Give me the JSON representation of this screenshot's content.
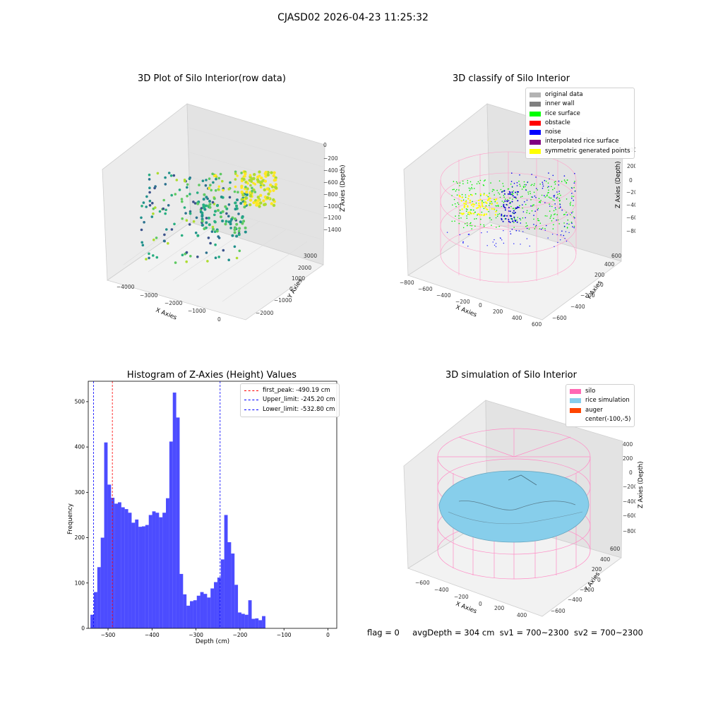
{
  "header": {
    "title": "CJASD02 2026-04-23 11:25:32"
  },
  "panels": {
    "raw": {
      "title": "3D Plot of Silo Interior(row data)",
      "xlabel": "X Axies",
      "ylabel": "Y Axies",
      "zlabel": "Z Axies (Depth)",
      "xticks": [
        "−4000",
        "−3000",
        "−2000",
        "−1000",
        "0"
      ],
      "yticks": [
        "−2000",
        "−1000",
        "0",
        "1000",
        "2000",
        "3000"
      ],
      "zticks": [
        "0",
        "−200",
        "−400",
        "−600",
        "−800",
        "−1000",
        "−1200",
        "−1400"
      ]
    },
    "classify": {
      "title": "3D classify of Silo Interior",
      "xlabel": "X Axies",
      "ylabel": "Y Axies",
      "zlabel": "Z Axies (Depth)",
      "xticks": [
        "−800",
        "−600",
        "−400",
        "−200",
        "0",
        "200",
        "400",
        "600"
      ],
      "yticks": [
        "−600",
        "−400",
        "−200",
        "0",
        "200",
        "400",
        "600"
      ],
      "zticks": [
        "200",
        "0",
        "−200",
        "−400",
        "−600",
        "−800"
      ],
      "legend": [
        {
          "label": "original data",
          "color": "#b3b3b3"
        },
        {
          "label": "inner wall",
          "color": "#808080"
        },
        {
          "label": "rice surface",
          "color": "#00ff00"
        },
        {
          "label": "obstacle",
          "color": "#ff0000"
        },
        {
          "label": "noise",
          "color": "#0000ff"
        },
        {
          "label": "interpolated rice surface",
          "color": "#800080"
        },
        {
          "label": "symmetric generated points",
          "color": "#ffff00"
        }
      ]
    },
    "simulation": {
      "title": "3D simulation of Silo Interior",
      "xlabel": "X Axies",
      "ylabel": "Y Axies",
      "zlabel": "Z Axies (Depth)",
      "xticks": [
        "−600",
        "−400",
        "−200",
        "0",
        "200",
        "400"
      ],
      "yticks": [
        "−600",
        "−400",
        "−200",
        "0",
        "200",
        "400",
        "600"
      ],
      "zticks": [
        "400",
        "200",
        "0",
        "−200",
        "−400",
        "−600",
        "−800"
      ],
      "legend": [
        {
          "label": "silo",
          "color": "#ff69b4"
        },
        {
          "label": "rice simulation",
          "color": "#87ceeb"
        },
        {
          "label": "auger",
          "color": "#ff4500"
        },
        {
          "label": "center(-100,-5)",
          "color": ""
        }
      ]
    }
  },
  "status": {
    "flag": "flag = 0",
    "avg_depth": "avgDepth = 304 cm",
    "sv1": "sv1 = 700~2300",
    "sv2": "sv2 = 700~2300"
  },
  "chart_data": {
    "type": "bar",
    "title": "Histogram of Z-Axies (Height) Values",
    "xlabel": "Depth (cm)",
    "ylabel": "Frequency",
    "xlim": [
      -545,
      20
    ],
    "ylim": [
      0,
      545
    ],
    "xticks": [
      -500,
      -400,
      -300,
      -200,
      -100,
      0
    ],
    "yticks": [
      0,
      100,
      200,
      300,
      400,
      500
    ],
    "bar_color": "#0000ff",
    "bins_start": -540,
    "bin_width": 7.8,
    "values": [
      30,
      80,
      135,
      200,
      410,
      317,
      288,
      275,
      278,
      267,
      263,
      255,
      233,
      240,
      224,
      225,
      228,
      250,
      258,
      255,
      245,
      255,
      287,
      412,
      520,
      465,
      120,
      75,
      50,
      60,
      62,
      72,
      80,
      76,
      68,
      88,
      102,
      112,
      152,
      250,
      190,
      165,
      96,
      35,
      32,
      30,
      62,
      21,
      22,
      18,
      27
    ],
    "vlines": [
      {
        "label": "first_peak: -490.19 cm",
        "x": -490.19,
        "color": "#ff0000"
      },
      {
        "label": "Upper_limit: -245.20 cm",
        "x": -245.2,
        "color": "#0000ff"
      },
      {
        "label": "Lower_limit: -532.80 cm",
        "x": -532.8,
        "color": "#0000ff"
      }
    ],
    "legend_position": "upper right"
  }
}
